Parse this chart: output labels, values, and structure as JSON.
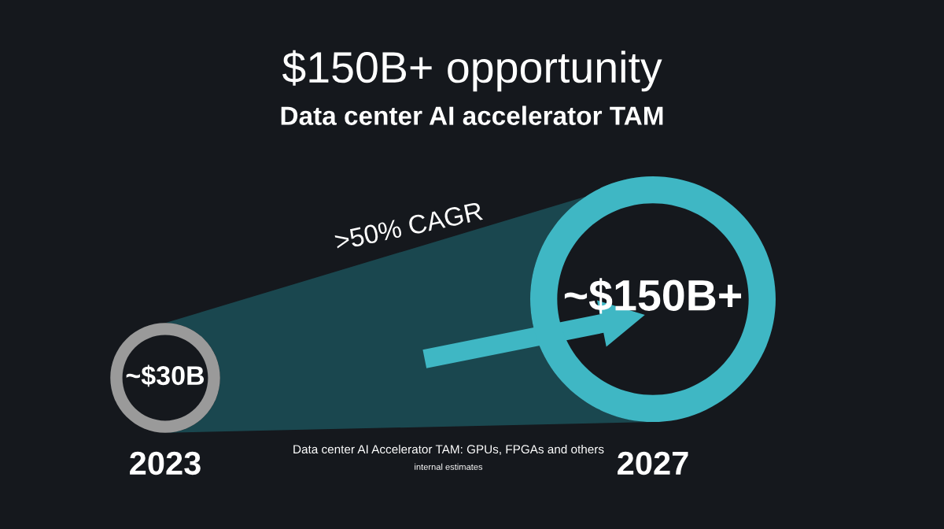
{
  "chart_data": {
    "type": "other",
    "title": "$150B+ opportunity",
    "subtitle": "Data center AI accelerator TAM",
    "categories": [
      "2023",
      "2027"
    ],
    "values": [
      30,
      150
    ],
    "value_labels": [
      "~$30B",
      "~$150B+"
    ],
    "colors": [
      "#9a9a9a",
      "#3fb7c4"
    ],
    "annotations": [
      ">50% CAGR",
      "Data center AI Accelerator TAM: GPUs, FPGAs and others",
      "internal estimates"
    ]
  }
}
